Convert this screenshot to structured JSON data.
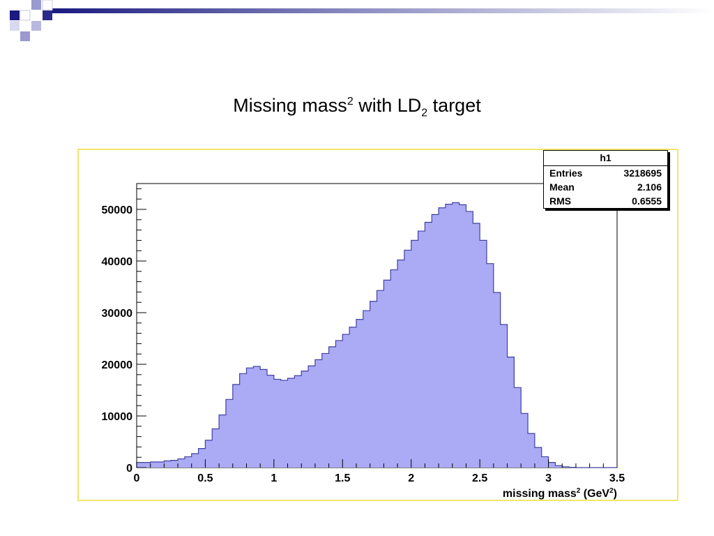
{
  "slide": {
    "title_main": "Missing mass",
    "title_sup": "2",
    "title_mid": " with LD",
    "title_sub": "2",
    "title_end": " target"
  },
  "stats": {
    "name": "h1",
    "rows": [
      {
        "label": "Entries",
        "value": "3218695"
      },
      {
        "label": "Mean",
        "value": "2.106"
      },
      {
        "label": "RMS",
        "value": "0.6555"
      }
    ]
  },
  "colors": {
    "fill": "#aaaaf5",
    "line": "#4040a0",
    "frame": "#f2e66a",
    "deco_dark": "#1a1a80",
    "deco_light": "#9a9ad0"
  },
  "chart_data": {
    "type": "bar",
    "title": "",
    "xlabel": "missing mass² (GeV²)",
    "ylabel": "",
    "xlim": [
      0,
      3.5
    ],
    "ylim": [
      0,
      55000
    ],
    "x_ticks": [
      "0",
      "0.5",
      "1",
      "1.5",
      "2",
      "2.5",
      "3",
      "3.5"
    ],
    "y_ticks": [
      "0",
      "10000",
      "20000",
      "30000",
      "40000",
      "50000"
    ],
    "bin_width": 0.05,
    "x": [
      0.025,
      0.075,
      0.125,
      0.175,
      0.225,
      0.275,
      0.325,
      0.375,
      0.425,
      0.475,
      0.525,
      0.575,
      0.625,
      0.675,
      0.725,
      0.775,
      0.825,
      0.875,
      0.925,
      0.975,
      1.025,
      1.075,
      1.125,
      1.175,
      1.225,
      1.275,
      1.325,
      1.375,
      1.425,
      1.475,
      1.525,
      1.575,
      1.625,
      1.675,
      1.725,
      1.775,
      1.825,
      1.875,
      1.925,
      1.975,
      2.025,
      2.075,
      2.125,
      2.175,
      2.225,
      2.275,
      2.325,
      2.375,
      2.425,
      2.475,
      2.525,
      2.575,
      2.625,
      2.675,
      2.725,
      2.775,
      2.825,
      2.875,
      2.925,
      2.975,
      3.025,
      3.075,
      3.125,
      3.175,
      3.225,
      3.275,
      3.325,
      3.375,
      3.425,
      3.475
    ],
    "values": [
      1000,
      1000,
      1100,
      1100,
      1300,
      1400,
      1700,
      2100,
      2700,
      3700,
      5300,
      7500,
      10200,
      13200,
      16100,
      18200,
      19300,
      19600,
      19000,
      17900,
      17100,
      16900,
      17300,
      17800,
      18700,
      19700,
      20900,
      22100,
      23400,
      24600,
      25800,
      27200,
      28700,
      30400,
      32200,
      34300,
      36300,
      38300,
      40200,
      42100,
      44000,
      45800,
      47500,
      49000,
      50300,
      51000,
      51300,
      50900,
      49600,
      47300,
      44000,
      39500,
      33900,
      27700,
      21400,
      15500,
      10500,
      6600,
      3900,
      2100,
      1000,
      400,
      150,
      50,
      0,
      0,
      0,
      0,
      0,
      0
    ]
  }
}
